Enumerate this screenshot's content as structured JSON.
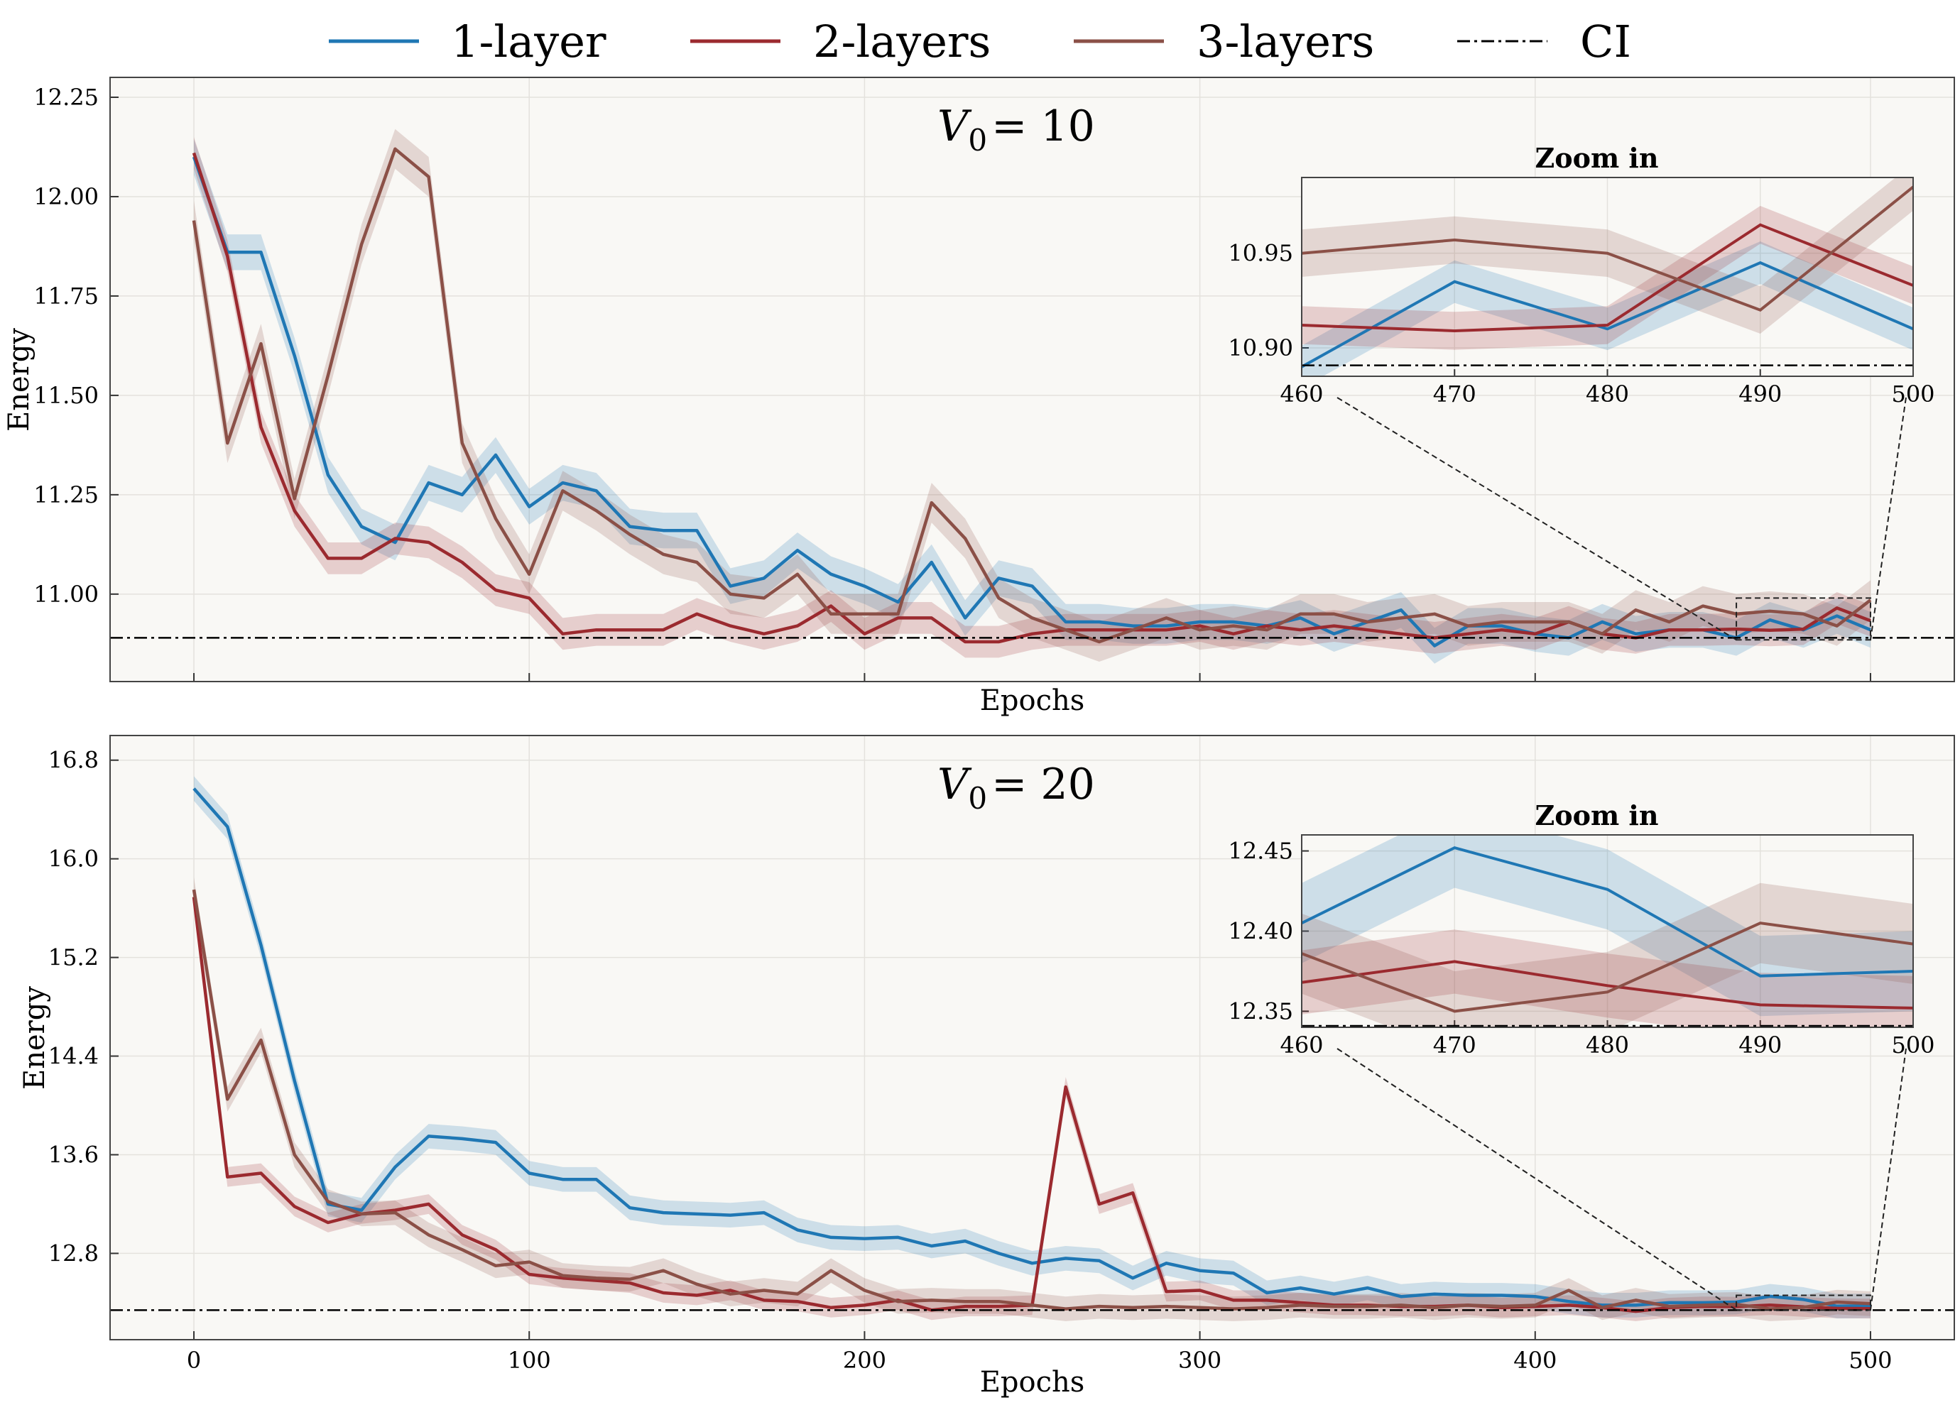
{
  "legend": [
    {
      "label": "1-layer",
      "color": "#1f77b4",
      "style": "solid"
    },
    {
      "label": "2-layers",
      "color": "#9b2a2f",
      "style": "solid"
    },
    {
      "label": "3-layers",
      "color": "#8b5047",
      "style": "solid"
    },
    {
      "label": "CI",
      "color": "#000000",
      "style": "dashdot"
    }
  ],
  "chart_data": [
    {
      "type": "line",
      "annotation": {
        "main": "V",
        "sub": "0",
        "value": "= 10"
      },
      "xlabel": "Epochs",
      "ylabel": "Energy",
      "xlim": [
        -25,
        525
      ],
      "ylim": [
        10.78,
        12.3
      ],
      "x_ticks": [
        0,
        100,
        200,
        300,
        400,
        500
      ],
      "x_ticklabels_shown": false,
      "y_ticks": [
        11.0,
        11.25,
        11.5,
        11.75,
        12.0,
        12.25
      ],
      "y_ticklabels": [
        "11.00",
        "11.25",
        "11.50",
        "11.75",
        "12.00",
        "12.25"
      ],
      "grid": true,
      "ci": 10.89,
      "x": [
        0,
        10,
        20,
        30,
        40,
        50,
        60,
        70,
        80,
        90,
        100,
        110,
        120,
        130,
        140,
        150,
        160,
        170,
        180,
        190,
        200,
        210,
        220,
        230,
        240,
        250,
        260,
        270,
        280,
        290,
        300,
        310,
        320,
        330,
        340,
        350,
        360,
        370,
        380,
        390,
        400,
        410,
        420,
        430,
        440,
        450,
        460,
        470,
        480,
        490,
        500
      ],
      "series": [
        {
          "name": "1-layer",
          "color": "#1f77b4",
          "band": 0.045,
          "values": [
            12.1,
            11.86,
            11.86,
            11.6,
            11.3,
            11.17,
            11.13,
            11.28,
            11.25,
            11.35,
            11.22,
            11.28,
            11.26,
            11.17,
            11.16,
            11.16,
            11.02,
            11.04,
            11.11,
            11.05,
            11.02,
            10.98,
            11.08,
            10.94,
            11.04,
            11.02,
            10.93,
            10.93,
            10.92,
            10.92,
            10.93,
            10.93,
            10.92,
            10.94,
            10.9,
            10.93,
            10.96,
            10.87,
            10.92,
            10.92,
            10.9,
            10.89,
            10.93,
            10.9,
            10.91,
            10.91,
            10.89,
            10.935,
            10.91,
            10.945,
            10.91
          ]
        },
        {
          "name": "2-layers",
          "color": "#9b2a2f",
          "band": 0.04,
          "values": [
            12.11,
            11.85,
            11.42,
            11.21,
            11.09,
            11.09,
            11.14,
            11.13,
            11.08,
            11.01,
            10.99,
            10.9,
            10.91,
            10.91,
            10.91,
            10.95,
            10.92,
            10.9,
            10.92,
            10.97,
            10.9,
            10.94,
            10.94,
            10.88,
            10.88,
            10.9,
            10.91,
            10.91,
            10.91,
            10.91,
            10.92,
            10.9,
            10.92,
            10.91,
            10.92,
            10.91,
            10.9,
            10.89,
            10.9,
            10.91,
            10.9,
            10.93,
            10.9,
            10.89,
            10.91,
            10.91,
            10.912,
            10.909,
            10.912,
            10.965,
            10.933
          ]
        },
        {
          "name": "3-layers",
          "color": "#8b5047",
          "band": 0.05,
          "values": [
            11.94,
            11.38,
            11.63,
            11.24,
            11.55,
            11.88,
            12.12,
            12.05,
            11.38,
            11.19,
            11.05,
            11.26,
            11.21,
            11.15,
            11.1,
            11.08,
            11.0,
            10.99,
            11.05,
            10.95,
            10.95,
            10.95,
            11.23,
            11.14,
            10.99,
            10.94,
            10.91,
            10.88,
            10.91,
            10.94,
            10.91,
            10.92,
            10.91,
            10.95,
            10.95,
            10.93,
            10.94,
            10.95,
            10.92,
            10.93,
            10.93,
            10.93,
            10.9,
            10.96,
            10.93,
            10.97,
            10.95,
            10.957,
            10.95,
            10.92,
            10.985
          ]
        }
      ],
      "inset": {
        "title": "Zoom in",
        "xlim": [
          460,
          500
        ],
        "ylim": [
          10.885,
          10.99
        ],
        "x_ticks": [
          460,
          470,
          480,
          490,
          500
        ],
        "x_ticklabels": [
          "460",
          "470",
          "480",
          "490",
          "500"
        ],
        "y_ticks": [
          10.9,
          10.95
        ],
        "y_ticklabels": [
          "10.90",
          "10.95"
        ],
        "source_box": {
          "x": [
            460,
            500
          ],
          "y": [
            10.885,
            10.99
          ]
        }
      }
    },
    {
      "type": "line",
      "annotation": {
        "main": "V",
        "sub": "0",
        "value": "= 20"
      },
      "xlabel": "Epochs",
      "ylabel": "Energy",
      "xlim": [
        -25,
        525
      ],
      "ylim": [
        12.1,
        17.0
      ],
      "x_ticks": [
        0,
        100,
        200,
        300,
        400,
        500
      ],
      "x_ticklabels": [
        "0",
        "100",
        "200",
        "300",
        "400",
        "500"
      ],
      "y_ticks": [
        12.8,
        13.6,
        14.4,
        15.2,
        16.0,
        16.8
      ],
      "y_ticklabels": [
        "12.8",
        "13.6",
        "14.4",
        "15.2",
        "16.0",
        "16.8"
      ],
      "grid": true,
      "ci": 12.34,
      "x": [
        0,
        10,
        20,
        30,
        40,
        50,
        60,
        70,
        80,
        90,
        100,
        110,
        120,
        130,
        140,
        150,
        160,
        170,
        180,
        190,
        200,
        210,
        220,
        230,
        240,
        250,
        260,
        270,
        280,
        290,
        300,
        310,
        320,
        330,
        340,
        350,
        360,
        370,
        380,
        390,
        400,
        410,
        420,
        430,
        440,
        450,
        460,
        470,
        480,
        490,
        500
      ],
      "series": [
        {
          "name": "1-layer",
          "color": "#1f77b4",
          "band": 0.1,
          "values": [
            16.57,
            16.26,
            15.3,
            14.2,
            13.2,
            13.15,
            13.5,
            13.75,
            13.73,
            13.7,
            13.45,
            13.4,
            13.4,
            13.17,
            13.13,
            13.12,
            13.11,
            13.13,
            12.99,
            12.93,
            12.92,
            12.93,
            12.86,
            12.9,
            12.8,
            12.72,
            12.76,
            12.74,
            12.6,
            12.72,
            12.66,
            12.64,
            12.48,
            12.52,
            12.47,
            12.52,
            12.45,
            12.47,
            12.46,
            12.46,
            12.45,
            12.41,
            12.38,
            12.38,
            12.4,
            12.4,
            12.405,
            12.452,
            12.426,
            12.372,
            12.375
          ]
        },
        {
          "name": "2-layers",
          "color": "#9b2a2f",
          "band": 0.08,
          "values": [
            15.69,
            13.42,
            13.45,
            13.18,
            13.05,
            13.12,
            13.15,
            13.2,
            12.95,
            12.83,
            12.63,
            12.6,
            12.58,
            12.56,
            12.48,
            12.46,
            12.5,
            12.42,
            12.41,
            12.36,
            12.38,
            12.42,
            12.34,
            12.37,
            12.37,
            12.38,
            14.15,
            13.2,
            13.29,
            12.49,
            12.5,
            12.42,
            12.42,
            12.4,
            12.38,
            12.38,
            12.37,
            12.37,
            12.38,
            12.36,
            12.37,
            12.38,
            12.36,
            12.33,
            12.36,
            12.37,
            12.368,
            12.381,
            12.366,
            12.354,
            12.352
          ]
        },
        {
          "name": "3-layers",
          "color": "#8b5047",
          "band": 0.1,
          "values": [
            15.75,
            14.05,
            14.53,
            13.6,
            13.22,
            13.12,
            13.13,
            12.95,
            12.83,
            12.7,
            12.73,
            12.62,
            12.6,
            12.59,
            12.66,
            12.55,
            12.47,
            12.5,
            12.47,
            12.66,
            12.5,
            12.41,
            12.42,
            12.41,
            12.41,
            12.38,
            12.35,
            12.37,
            12.36,
            12.37,
            12.36,
            12.35,
            12.36,
            12.38,
            12.37,
            12.37,
            12.38,
            12.36,
            12.38,
            12.37,
            12.38,
            12.5,
            12.36,
            12.42,
            12.37,
            12.38,
            12.386,
            12.35,
            12.362,
            12.405,
            12.392
          ]
        }
      ],
      "inset": {
        "title": "Zoom in",
        "xlim": [
          460,
          500
        ],
        "ylim": [
          12.34,
          12.46
        ],
        "x_ticks": [
          460,
          470,
          480,
          490,
          500
        ],
        "x_ticklabels": [
          "460",
          "470",
          "480",
          "490",
          "500"
        ],
        "y_ticks": [
          12.35,
          12.4,
          12.45
        ],
        "y_ticklabels": [
          "12.35",
          "12.40",
          "12.45"
        ],
        "source_box": {
          "x": [
            460,
            500
          ],
          "y": [
            12.34,
            12.46
          ]
        }
      }
    }
  ]
}
